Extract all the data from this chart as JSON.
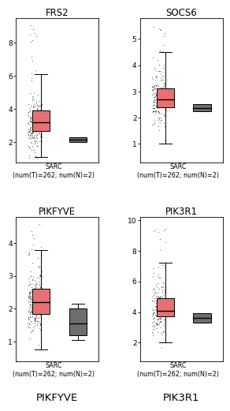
{
  "panels": [
    {
      "title": "FRS2",
      "xlabel_bottom": "SARC\n(num(T)=262; num(N)=2)",
      "tumor": {
        "median": 3.2,
        "q1": 2.7,
        "q3": 3.9,
        "whisker_low": 1.1,
        "whisker_high": 6.1,
        "scatter_mean": 3.1,
        "scatter_std": 0.85,
        "scatter_n": 220,
        "scatter_min": 1.05,
        "scatter_max": 9.2
      },
      "normal": {
        "median": 2.15,
        "q1": 2.0,
        "q3": 2.3,
        "whisker_low": 2.0,
        "whisker_high": 2.3
      },
      "ylim": [
        0.8,
        9.5
      ],
      "yticks": [
        2,
        4,
        6,
        8
      ]
    },
    {
      "title": "SOCS6",
      "xlabel_bottom": "SARC\n(num(T)=262; num(N)=2)",
      "tumor": {
        "median": 2.7,
        "q1": 2.4,
        "q3": 3.1,
        "whisker_low": 1.0,
        "whisker_high": 4.5,
        "scatter_mean": 2.75,
        "scatter_std": 0.55,
        "scatter_n": 220,
        "scatter_min": 0.5,
        "scatter_max": 5.5
      },
      "normal": {
        "median": 2.35,
        "q1": 2.25,
        "q3": 2.5,
        "whisker_low": 2.25,
        "whisker_high": 2.5
      },
      "ylim": [
        0.3,
        5.8
      ],
      "yticks": [
        1,
        2,
        3,
        4,
        5
      ]
    },
    {
      "title": "PIKFYVE",
      "xlabel_bottom": "SARC\n(num(T)=262; num(N)=2)",
      "bottom_label": "PIKFYVE",
      "tumor": {
        "median": 2.2,
        "q1": 1.85,
        "q3": 2.6,
        "whisker_low": 0.75,
        "whisker_high": 3.8,
        "scatter_mean": 2.2,
        "scatter_std": 0.5,
        "scatter_n": 220,
        "scatter_min": 0.55,
        "scatter_max": 4.6
      },
      "normal": {
        "median": 1.55,
        "q1": 1.2,
        "q3": 2.0,
        "whisker_low": 1.05,
        "whisker_high": 2.15
      },
      "ylim": [
        0.4,
        4.8
      ],
      "yticks": [
        1,
        2,
        3,
        4
      ]
    },
    {
      "title": "PIK3R1",
      "xlabel_bottom": "SARC\n(num(T)=262; num(N)=2)",
      "bottom_label": "PIK3R1",
      "tumor": {
        "median": 4.1,
        "q1": 3.7,
        "q3": 4.9,
        "whisker_low": 2.0,
        "whisker_high": 7.2,
        "scatter_mean": 4.2,
        "scatter_std": 0.85,
        "scatter_n": 220,
        "scatter_min": 1.0,
        "scatter_max": 9.5
      },
      "normal": {
        "median": 3.6,
        "q1": 3.3,
        "q3": 3.9,
        "whisker_low": 3.3,
        "whisker_high": 3.9
      },
      "ylim": [
        0.8,
        10.2
      ],
      "yticks": [
        2,
        4,
        6,
        8,
        10
      ]
    }
  ],
  "tumor_color": "#E87070",
  "normal_color": "#6E6E6E",
  "figure_bg": "#ffffff",
  "font_size_title": 8.5,
  "font_size_tick": 6.5,
  "font_size_xlabel": 5.8,
  "font_size_bottom": 9.5
}
